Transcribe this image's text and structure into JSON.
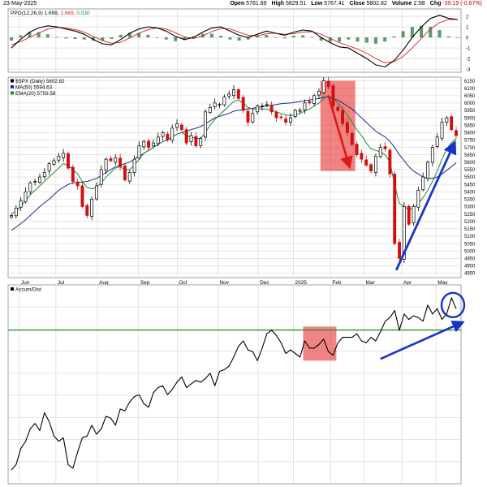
{
  "header": {
    "date": "23-May-2025",
    "open_label": "Open",
    "open": "5781.89",
    "high_label": "High",
    "high": "5829.51",
    "low_label": "Low",
    "low": "5767.41",
    "close_label": "Close",
    "close": "5802.82",
    "volume_label": "Volume",
    "volume": "2.5B",
    "chg_label": "Chg",
    "chg": "-39.19 (-0.67%)",
    "chg_color": "#c00000"
  },
  "chart_data": [
    {
      "type": "line",
      "panel": "ppo",
      "legend": [
        {
          "text": "PPO(12,26,9) 1.699, 1.669, 0.030",
          "colors": [
            "#000000",
            "#d62020",
            "#1a8a3a"
          ]
        }
      ],
      "y_ticks": [
        2,
        1,
        0,
        -1,
        -2,
        -3
      ],
      "ylim": [
        -3.3,
        2.7
      ],
      "series": [
        {
          "key": "ppo",
          "color": "#000000",
          "values": [
            -1.0,
            -0.2,
            0.5,
            0.9,
            1.1,
            1.0,
            0.8,
            0.6,
            0.3,
            -0.2,
            -0.6,
            -0.7,
            -0.2,
            0.4,
            0.8,
            1.0,
            0.9,
            0.6,
            0.1,
            -0.2,
            0.0,
            0.5,
            0.9,
            1.0,
            0.6,
            0.2,
            0.0,
            0.3,
            0.6,
            0.4,
            0.2,
            0.5,
            0.7,
            0.6,
            0.0,
            -0.5,
            -0.9,
            -1.0,
            -1.5,
            -2.0,
            -2.6,
            -2.8,
            -2.2,
            -1.2,
            0.0,
            1.0,
            1.8,
            2.1,
            1.8,
            1.7
          ]
        },
        {
          "key": "signal",
          "color": "#d62020",
          "values": [
            -0.7,
            -0.4,
            0.0,
            0.4,
            0.8,
            0.95,
            0.9,
            0.75,
            0.5,
            0.1,
            -0.3,
            -0.55,
            -0.45,
            -0.05,
            0.4,
            0.75,
            0.9,
            0.8,
            0.45,
            0.05,
            -0.1,
            0.15,
            0.55,
            0.85,
            0.8,
            0.5,
            0.2,
            0.15,
            0.35,
            0.4,
            0.3,
            0.35,
            0.5,
            0.55,
            0.3,
            -0.1,
            -0.5,
            -0.8,
            -1.1,
            -1.5,
            -2.0,
            -2.4,
            -2.3,
            -1.8,
            -1.0,
            -0.1,
            0.8,
            1.4,
            1.7,
            1.7
          ]
        }
      ]
    },
    {
      "type": "candlestick",
      "panel": "price",
      "title": "$SPX (Daily) 5802.82",
      "legend": [
        {
          "text": "$SPX (Daily) 5802.82",
          "color": "#000000"
        },
        {
          "text": "MA(50) 5594.63",
          "color": "#1c2b8c"
        },
        {
          "text": "EMA(20) 5759.58",
          "color": "#1a8a3a"
        }
      ],
      "y_ticks": [
        6150,
        6100,
        6050,
        6000,
        5950,
        5900,
        5850,
        5800,
        5750,
        5700,
        5650,
        5600,
        5550,
        5500,
        5450,
        5400,
        5350,
        5300,
        5250,
        5200,
        5150,
        5100,
        5050,
        5000,
        4950,
        4900,
        4850
      ],
      "ylim": [
        4820,
        6175
      ],
      "x_labels": [
        {
          "text": "Jun",
          "t": 0.0
        },
        {
          "text": "Jul",
          "t": 0.085
        },
        {
          "text": "Aug",
          "t": 0.182
        },
        {
          "text": "Sep",
          "t": 0.278
        },
        {
          "text": "Oct",
          "t": 0.368
        },
        {
          "text": "Nov",
          "t": 0.463
        },
        {
          "text": "Dec",
          "t": 0.557
        },
        {
          "text": "2025",
          "t": 0.639
        },
        {
          "text": "Feb",
          "t": 0.726
        },
        {
          "text": "Mar",
          "t": 0.804
        },
        {
          "text": "Apr",
          "t": 0.892
        },
        {
          "text": "May",
          "t": 0.972
        }
      ],
      "close": [
        5240,
        5290,
        5340,
        5400,
        5460,
        5470,
        5500,
        5530,
        5590,
        5610,
        5640,
        5660,
        5560,
        5470,
        5440,
        5300,
        5240,
        5350,
        5440,
        5550,
        5620,
        5610,
        5630,
        5570,
        5480,
        5530,
        5620,
        5710,
        5740,
        5700,
        5730,
        5770,
        5800,
        5750,
        5830,
        5860,
        5820,
        5730,
        5780,
        5710,
        5760,
        5940,
        5970,
        6000,
        5990,
        6040,
        6060,
        6090,
        6030,
        5950,
        5870,
        5930,
        5980,
        5980,
        5990,
        5940,
        5900,
        5900,
        5870,
        5900,
        5950,
        5950,
        6000,
        6000,
        6050,
        6080,
        6150,
        6110,
        5980,
        5950,
        5860,
        5800,
        5720,
        5650,
        5620,
        5580,
        5540,
        5640,
        5700,
        5690,
        5520,
        5050,
        4950,
        5300,
        5180,
        5300,
        5410,
        5500,
        5600,
        5700,
        5770,
        5870,
        5900,
        5820,
        5780
      ],
      "ma50": [
        5140,
        5160,
        5185,
        5210,
        5240,
        5270,
        5300,
        5325,
        5350,
        5380,
        5410,
        5430,
        5450,
        5460,
        5465,
        5465,
        5470,
        5480,
        5490,
        5510,
        5530,
        5550,
        5570,
        5580,
        5590,
        5600,
        5620,
        5640,
        5660,
        5680,
        5700,
        5720,
        5740,
        5750,
        5770,
        5790,
        5800,
        5810,
        5820,
        5830,
        5840,
        5860,
        5880,
        5900,
        5910,
        5920,
        5930,
        5945,
        5950,
        5955,
        5960,
        5965,
        5970,
        5975,
        5980,
        5985,
        5990,
        5995,
        5998,
        6000,
        6005,
        6010,
        6015,
        6020,
        6025,
        6030,
        6040,
        6040,
        6030,
        6020,
        6000,
        5980,
        5960,
        5930,
        5900,
        5870,
        5840,
        5810,
        5790,
        5770,
        5740,
        5700,
        5650,
        5610,
        5570,
        5540,
        5520,
        5500,
        5490,
        5490,
        5500,
        5520,
        5545,
        5570,
        5595
      ],
      "ema20": [
        5250,
        5270,
        5300,
        5340,
        5380,
        5410,
        5440,
        5470,
        5500,
        5530,
        5560,
        5590,
        5580,
        5550,
        5520,
        5470,
        5430,
        5420,
        5430,
        5460,
        5500,
        5530,
        5560,
        5570,
        5550,
        5550,
        5580,
        5620,
        5660,
        5680,
        5700,
        5720,
        5740,
        5750,
        5770,
        5790,
        5800,
        5780,
        5770,
        5760,
        5760,
        5800,
        5850,
        5890,
        5920,
        5950,
        5980,
        6010,
        6020,
        6000,
        5970,
        5960,
        5960,
        5960,
        5960,
        5950,
        5940,
        5930,
        5920,
        5915,
        5920,
        5930,
        5945,
        5960,
        5980,
        6000,
        6030,
        6050,
        6030,
        6000,
        5960,
        5920,
        5870,
        5820,
        5780,
        5730,
        5690,
        5680,
        5670,
        5650,
        5600,
        5450,
        5320,
        5300,
        5280,
        5290,
        5320,
        5360,
        5410,
        5470,
        5540,
        5620,
        5690,
        5730,
        5760
      ]
    },
    {
      "type": "line",
      "panel": "accum_dist",
      "title": "Accum/Dist",
      "legend": [
        {
          "text": "Accum/Dist",
          "color": "#000000"
        }
      ],
      "ylim": [
        0,
        100
      ],
      "reference_level": 82,
      "series": [
        {
          "key": "accum_dist",
          "color": "#000000",
          "values": [
            4,
            7,
            16,
            20,
            27,
            30,
            26,
            36,
            31,
            23,
            20,
            22,
            7,
            5,
            14,
            22,
            23,
            29,
            24,
            27,
            34,
            33,
            29,
            38,
            37,
            42,
            45,
            46,
            41,
            39,
            47,
            50,
            51,
            46,
            49,
            53,
            56,
            50,
            52,
            54,
            53,
            55,
            58,
            51,
            59,
            60,
            62,
            67,
            73,
            76,
            71,
            70,
            65,
            72,
            80,
            82,
            79,
            75,
            69,
            71,
            69,
            67,
            76,
            72,
            72,
            74,
            77,
            70,
            68,
            75,
            78,
            78,
            78,
            80,
            76,
            75,
            78,
            76,
            81,
            87,
            89,
            93,
            82,
            91,
            88,
            90,
            89,
            87,
            96,
            91,
            94,
            88,
            91,
            100,
            94
          ]
        }
      ]
    }
  ],
  "annotations": {
    "box_color": "#e83030",
    "arrow_color": "#e01818",
    "trend_color": "#1833c8",
    "grid_color": "#d8d8d8",
    "reference_line_color": "#2a9a2a"
  }
}
